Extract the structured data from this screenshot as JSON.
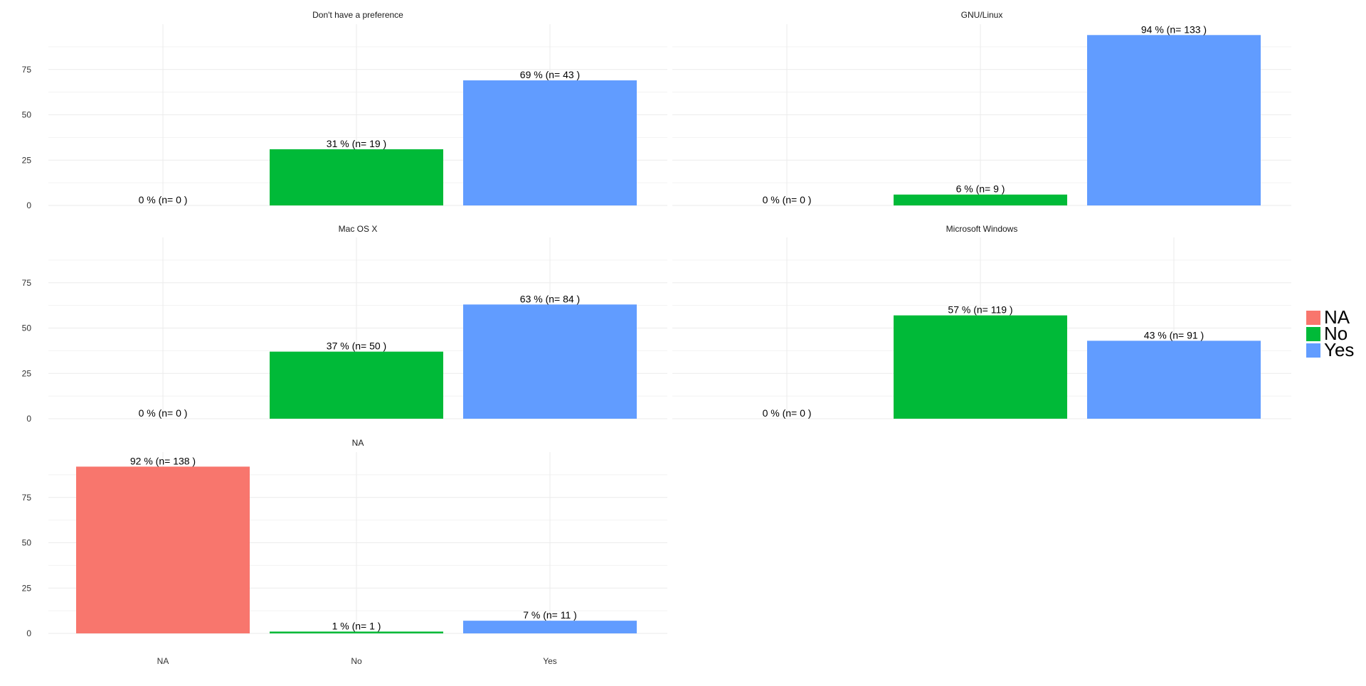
{
  "chart_data": {
    "type": "bar",
    "layout": "faceted",
    "categories": [
      "NA",
      "No",
      "Yes"
    ],
    "ylim": [
      0,
      100
    ],
    "yticks": [
      0,
      25,
      50,
      75
    ],
    "grid": true,
    "legend_position": "right",
    "colors": {
      "NA": "#F8766D",
      "No": "#00BA38",
      "Yes": "#619CFF"
    },
    "legend": [
      "NA",
      "No",
      "Yes"
    ],
    "panels": [
      {
        "title": "Don't have a preference",
        "values": [
          0,
          31,
          69
        ],
        "labels": [
          "0 %  (n= 0 )",
          "31 %  (n= 19 )",
          "69 %  (n= 43 )"
        ]
      },
      {
        "title": "GNU/Linux",
        "values": [
          0,
          6,
          94
        ],
        "labels": [
          "0 %  (n= 0 )",
          "6 %  (n= 9 )",
          "94 %  (n= 133 )"
        ]
      },
      {
        "title": "Mac OS X",
        "values": [
          0,
          37,
          63
        ],
        "labels": [
          "0 %  (n= 0 )",
          "37 %  (n= 50 )",
          "63 %  (n= 84 )"
        ]
      },
      {
        "title": "Microsoft Windows",
        "values": [
          0,
          57,
          43
        ],
        "labels": [
          "0 %  (n= 0 )",
          "57 %  (n= 119 )",
          "43 %  (n= 91 )"
        ]
      },
      {
        "title": "NA",
        "values": [
          92,
          1,
          7
        ],
        "labels": [
          "92 %  (n= 138 )",
          "1 %  (n= 1 )",
          "7 %  (n= 11 )"
        ]
      }
    ]
  }
}
